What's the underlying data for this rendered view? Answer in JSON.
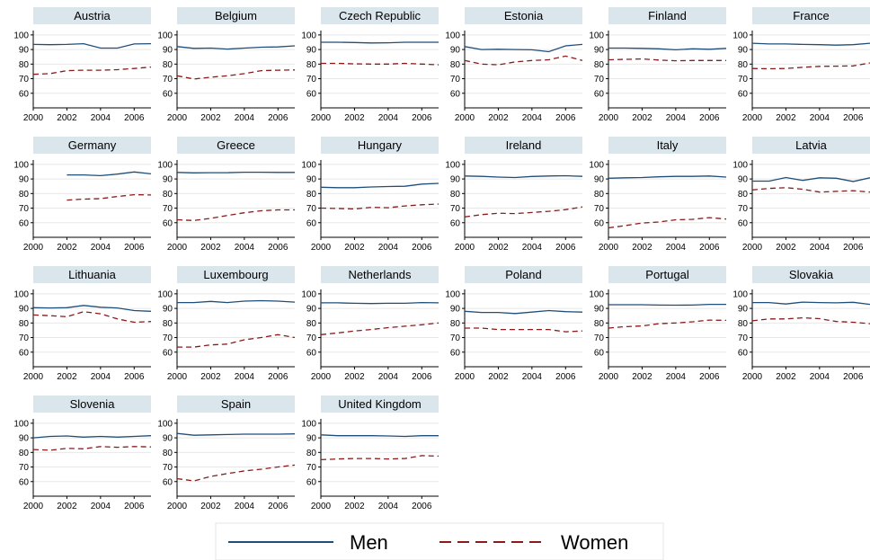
{
  "chart_data": {
    "type": "line",
    "layout": "small-multiples",
    "x": [
      2000,
      2001,
      2002,
      2003,
      2004,
      2005,
      2006,
      2007
    ],
    "xticks": [
      "2000",
      "2002",
      "2004",
      "2006"
    ],
    "ylim": [
      50,
      103
    ],
    "yticks": [
      "60",
      "70",
      "80",
      "90",
      "100"
    ],
    "colors": {
      "Men": "#1f4e79",
      "Women": "#8b1a1a",
      "panel_header": "#dbe6ec",
      "grid": "#e8e8e8"
    },
    "legend": {
      "position": "bottom-center",
      "entries": [
        "Men",
        "Women"
      ]
    },
    "panels": [
      {
        "title": "Austria",
        "men": [
          93.5,
          93.3,
          93.5,
          94.0,
          91.0,
          91.0,
          93.8,
          94.0
        ],
        "women": [
          73,
          73.5,
          75.5,
          75.8,
          75.8,
          76.2,
          77.0,
          78.0
        ]
      },
      {
        "title": "Belgium",
        "men": [
          92.0,
          90.8,
          91.0,
          90.3,
          91.0,
          91.6,
          91.8,
          92.5
        ],
        "women": [
          72,
          69.8,
          71.0,
          72.0,
          73.5,
          75.5,
          75.8,
          76.0
        ]
      },
      {
        "title": "Czech Republic",
        "men": [
          95.0,
          95.0,
          94.8,
          94.5,
          94.6,
          95.0,
          95.0,
          95.0
        ],
        "women": [
          80.5,
          80.5,
          80.2,
          80.0,
          80.0,
          80.5,
          80.0,
          79.5
        ]
      },
      {
        "title": "Estonia",
        "men": [
          92.0,
          90.0,
          90.2,
          90.0,
          89.8,
          88.5,
          92.5,
          93.5
        ],
        "women": [
          82.5,
          80.0,
          79.5,
          81.5,
          82.5,
          83.0,
          85.5,
          82.5
        ]
      },
      {
        "title": "Finland",
        "men": [
          91.0,
          91.0,
          90.8,
          90.5,
          89.8,
          90.5,
          90.2,
          90.8
        ],
        "women": [
          83.0,
          83.3,
          83.5,
          82.8,
          82.3,
          82.5,
          82.5,
          82.5
        ]
      },
      {
        "title": "France",
        "men": [
          94.3,
          93.8,
          93.8,
          93.5,
          93.3,
          93.0,
          93.3,
          94.3
        ],
        "women": [
          77.0,
          76.8,
          77.0,
          77.8,
          78.5,
          78.6,
          78.8,
          80.8
        ]
      },
      {
        "title": "Germany",
        "men": [
          null,
          null,
          92.8,
          92.8,
          92.3,
          93.3,
          94.8,
          93.5
        ],
        "women": [
          null,
          null,
          75.5,
          76.2,
          76.5,
          78.0,
          79.2,
          79.0
        ]
      },
      {
        "title": "Greece",
        "men": [
          94.5,
          94.2,
          94.3,
          94.3,
          94.6,
          94.6,
          94.5,
          94.5
        ],
        "women": [
          62.0,
          61.5,
          63.0,
          65.0,
          66.8,
          68.2,
          68.8,
          68.8
        ]
      },
      {
        "title": "Hungary",
        "men": [
          84.3,
          84.0,
          84.0,
          84.5,
          84.8,
          85.0,
          86.5,
          87.0
        ],
        "women": [
          70.0,
          69.8,
          69.5,
          70.5,
          70.3,
          71.5,
          72.3,
          72.8
        ]
      },
      {
        "title": "Ireland",
        "men": [
          92.0,
          91.8,
          91.3,
          91.0,
          91.7,
          92.0,
          92.2,
          91.8
        ],
        "women": [
          64.0,
          65.5,
          66.5,
          66.3,
          67.0,
          67.8,
          69.0,
          70.8
        ]
      },
      {
        "title": "Italy",
        "men": [
          90.5,
          90.8,
          91.0,
          91.5,
          91.8,
          91.8,
          92.0,
          91.3
        ],
        "women": [
          56.5,
          58.0,
          59.8,
          60.5,
          62.0,
          62.3,
          63.5,
          62.5
        ]
      },
      {
        "title": "Latvia",
        "men": [
          88.5,
          88.5,
          91.0,
          89.0,
          90.8,
          90.5,
          88.3,
          90.8
        ],
        "women": [
          82.5,
          83.5,
          84.0,
          83.0,
          81.0,
          81.5,
          82.0,
          81.0
        ]
      },
      {
        "title": "Lithuania",
        "men": [
          90.5,
          90.3,
          90.5,
          92.0,
          90.8,
          90.3,
          88.5,
          88.0
        ],
        "women": [
          85.5,
          85.0,
          84.3,
          87.8,
          86.3,
          82.8,
          80.5,
          81.0
        ]
      },
      {
        "title": "Luxembourg",
        "men": [
          94.0,
          94.0,
          94.8,
          94.0,
          95.0,
          95.3,
          95.0,
          94.3
        ],
        "women": [
          63.5,
          63.5,
          65.0,
          65.5,
          68.5,
          70.0,
          72.0,
          70.0
        ]
      },
      {
        "title": "Netherlands",
        "men": [
          93.8,
          93.8,
          93.5,
          93.3,
          93.5,
          93.5,
          94.0,
          93.8
        ],
        "women": [
          72.0,
          73.2,
          74.5,
          75.5,
          76.8,
          77.8,
          78.8,
          80.0
        ]
      },
      {
        "title": "Poland",
        "men": [
          88.0,
          87.2,
          87.2,
          86.5,
          87.5,
          88.5,
          87.8,
          87.5
        ],
        "women": [
          76.5,
          76.5,
          75.5,
          75.5,
          75.5,
          75.5,
          74.0,
          74.5
        ]
      },
      {
        "title": "Portugal",
        "men": [
          92.5,
          92.5,
          92.5,
          92.3,
          92.2,
          92.3,
          92.8,
          92.8
        ],
        "women": [
          76.5,
          77.5,
          78.0,
          79.5,
          80.0,
          80.8,
          82.0,
          81.8
        ]
      },
      {
        "title": "Slovakia",
        "men": [
          94.0,
          94.0,
          93.0,
          94.3,
          94.0,
          93.8,
          94.2,
          92.8
        ],
        "women": [
          81.5,
          82.8,
          82.8,
          83.5,
          83.0,
          81.0,
          80.5,
          79.5
        ]
      },
      {
        "title": "Slovenia",
        "men": [
          90.0,
          91.0,
          91.3,
          90.5,
          91.0,
          90.5,
          91.0,
          91.5
        ],
        "women": [
          82.0,
          81.5,
          82.8,
          82.5,
          84.0,
          83.5,
          84.0,
          83.8
        ]
      },
      {
        "title": "Spain",
        "men": [
          93.0,
          91.8,
          92.0,
          92.3,
          92.5,
          92.5,
          92.5,
          92.7
        ],
        "women": [
          62.0,
          60.5,
          63.5,
          65.5,
          67.3,
          68.5,
          70.0,
          71.3
        ]
      },
      {
        "title": "United Kingdom",
        "men": [
          92.0,
          91.5,
          91.5,
          91.5,
          91.3,
          91.0,
          91.5,
          91.5
        ],
        "women": [
          75.0,
          75.5,
          75.8,
          75.8,
          75.5,
          75.8,
          77.8,
          77.5
        ]
      }
    ]
  }
}
